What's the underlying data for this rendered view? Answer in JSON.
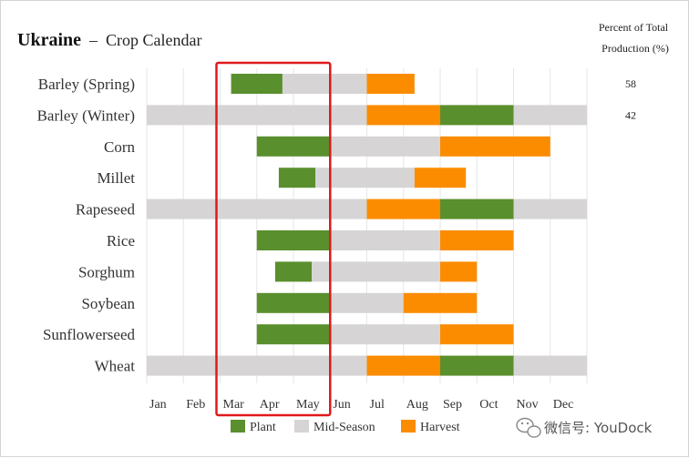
{
  "title": {
    "country": "Ukraine",
    "dash": "–",
    "rest": "Crop Calendar"
  },
  "percent_header": [
    "Percent of Total",
    "Production (%)"
  ],
  "watermark": "微信号: YouDock",
  "colors": {
    "plant": "#5a8f2d",
    "mid": "#d6d4d5",
    "harvest": "#fb8c00",
    "highlight": "#e0191b",
    "grid": "#e6e6e6"
  },
  "chart_data": {
    "type": "bar",
    "subtype": "gantt",
    "months": [
      "Jan",
      "Feb",
      "Mar",
      "Apr",
      "May",
      "Jun",
      "Jul",
      "Aug",
      "Sep",
      "Oct",
      "Nov",
      "Dec"
    ],
    "legend": [
      {
        "key": "plant",
        "label": "Plant"
      },
      {
        "key": "mid",
        "label": "Mid-Season"
      },
      {
        "key": "harvest",
        "label": "Harvest"
      }
    ],
    "highlight_months": [
      "Mar",
      "May"
    ],
    "crops": [
      {
        "name": "Barley (Spring)",
        "percent": "58",
        "segments": [
          {
            "phase": "plant",
            "start": 3.3,
            "end": 4.7
          },
          {
            "phase": "mid",
            "start": 4.7,
            "end": 7.0
          },
          {
            "phase": "harvest",
            "start": 7.0,
            "end": 8.3
          }
        ]
      },
      {
        "name": "Barley (Winter)",
        "percent": "42",
        "segments": [
          {
            "phase": "mid",
            "start": 1.0,
            "end": 7.0
          },
          {
            "phase": "harvest",
            "start": 7.0,
            "end": 9.0
          },
          {
            "phase": "plant",
            "start": 9.0,
            "end": 11.0
          },
          {
            "phase": "mid",
            "start": 11.0,
            "end": 13.0
          }
        ]
      },
      {
        "name": "Corn",
        "percent": "",
        "segments": [
          {
            "phase": "plant",
            "start": 4.0,
            "end": 6.0
          },
          {
            "phase": "mid",
            "start": 6.0,
            "end": 9.0
          },
          {
            "phase": "harvest",
            "start": 9.0,
            "end": 12.0
          }
        ]
      },
      {
        "name": "Millet",
        "percent": "",
        "segments": [
          {
            "phase": "plant",
            "start": 4.6,
            "end": 5.6
          },
          {
            "phase": "mid",
            "start": 5.6,
            "end": 8.3
          },
          {
            "phase": "harvest",
            "start": 8.3,
            "end": 9.7
          }
        ]
      },
      {
        "name": "Rapeseed",
        "percent": "",
        "segments": [
          {
            "phase": "mid",
            "start": 1.0,
            "end": 7.0
          },
          {
            "phase": "harvest",
            "start": 7.0,
            "end": 9.0
          },
          {
            "phase": "plant",
            "start": 9.0,
            "end": 11.0
          },
          {
            "phase": "mid",
            "start": 11.0,
            "end": 13.0
          }
        ]
      },
      {
        "name": "Rice",
        "percent": "",
        "segments": [
          {
            "phase": "plant",
            "start": 4.0,
            "end": 6.0
          },
          {
            "phase": "mid",
            "start": 6.0,
            "end": 9.0
          },
          {
            "phase": "harvest",
            "start": 9.0,
            "end": 11.0
          }
        ]
      },
      {
        "name": "Sorghum",
        "percent": "",
        "segments": [
          {
            "phase": "plant",
            "start": 4.5,
            "end": 5.5
          },
          {
            "phase": "mid",
            "start": 5.5,
            "end": 9.0
          },
          {
            "phase": "harvest",
            "start": 9.0,
            "end": 10.0
          }
        ]
      },
      {
        "name": "Soybean",
        "percent": "",
        "segments": [
          {
            "phase": "plant",
            "start": 4.0,
            "end": 6.0
          },
          {
            "phase": "mid",
            "start": 6.0,
            "end": 8.0
          },
          {
            "phase": "harvest",
            "start": 8.0,
            "end": 10.0
          }
        ]
      },
      {
        "name": "Sunflowerseed",
        "percent": "",
        "segments": [
          {
            "phase": "plant",
            "start": 4.0,
            "end": 6.0
          },
          {
            "phase": "mid",
            "start": 6.0,
            "end": 9.0
          },
          {
            "phase": "harvest",
            "start": 9.0,
            "end": 11.0
          }
        ]
      },
      {
        "name": "Wheat",
        "percent": "",
        "segments": [
          {
            "phase": "mid",
            "start": 1.0,
            "end": 7.0
          },
          {
            "phase": "harvest",
            "start": 7.0,
            "end": 9.0
          },
          {
            "phase": "plant",
            "start": 9.0,
            "end": 11.0
          },
          {
            "phase": "mid",
            "start": 11.0,
            "end": 13.0
          }
        ]
      }
    ]
  }
}
